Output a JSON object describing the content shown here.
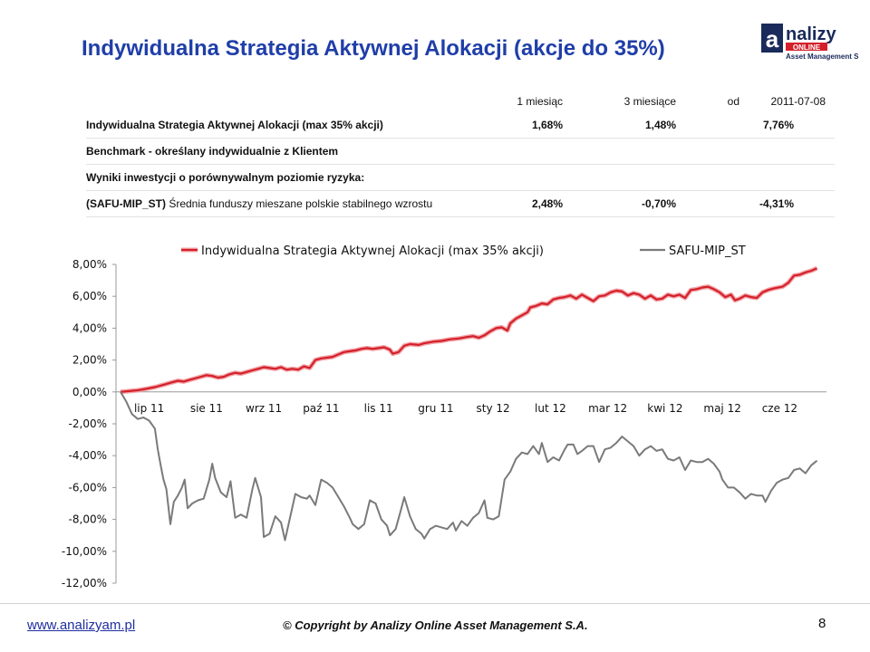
{
  "slide": {
    "title": "Indywidualna Strategia Aktywnej Alokacji (akcje do 35%)",
    "logo_text_top": "nalizy",
    "logo_text_mid": "ONLINE",
    "logo_text_bottom": "Asset Management S.A.",
    "logo_mark": "a",
    "footer_url": "www.analizyam.pl",
    "footer_copyright": "© Copyright by Analizy Online Asset Management S.A.",
    "page_number": "8",
    "colors": {
      "title": "#1f3ea8",
      "series1": "#d4202a",
      "series2": "#7a7a7a",
      "link": "#1f2fa0"
    }
  },
  "table": {
    "headers": {
      "col1": "1 miesiąc",
      "col2": "3 miesiące",
      "col3_prefix": "od",
      "col3_date": "2011-07-08"
    },
    "rows": [
      {
        "label": "Indywidualna Strategia Aktywnej Alokacji (max 35% akcji)",
        "v1": "1,68%",
        "v2": "1,48%",
        "v3": "7,76%"
      },
      {
        "label": "Benchmark - określany indywidualnie z Klientem",
        "v1": "",
        "v2": "",
        "v3": ""
      },
      {
        "label": "Wyniki inwestycji o porównywalnym poziomie ryzyka:",
        "v1": "",
        "v2": "",
        "v3": ""
      },
      {
        "label_bold": "(SAFU-MIP_ST)",
        "label_rest": " Średnia funduszy mieszane polskie stabilnego wzrostu",
        "v1": "2,48%",
        "v2": "-0,70%",
        "v3": "-4,31%"
      }
    ]
  },
  "chart_data": {
    "type": "line",
    "x_tick_labels": [
      "lip 11",
      "sie 11",
      "wrz 11",
      "paź 11",
      "lis 11",
      "gru 11",
      "sty 12",
      "lut 12",
      "mar 12",
      "kwi 12",
      "maj 12",
      "cze 12"
    ],
    "y_tick_labels": [
      "8,00%",
      "6,00%",
      "4,00%",
      "2,00%",
      "0,00%",
      "-2,00%",
      "-4,00%",
      "-6,00%",
      "-8,00%",
      "-10,00%",
      "-12,00%"
    ],
    "ylim": [
      -12,
      8
    ],
    "xlim": [
      0,
      12
    ],
    "grid": false,
    "legend_position": "top",
    "series": [
      {
        "name": "Indywidualna Strategia Aktywnej Alokacji (max 35% akcji)",
        "color": "#d4202a",
        "points": [
          [
            0.0,
            0.0
          ],
          [
            0.15,
            0.05
          ],
          [
            0.3,
            0.1
          ],
          [
            0.45,
            0.2
          ],
          [
            0.6,
            0.3
          ],
          [
            0.75,
            0.45
          ],
          [
            0.9,
            0.6
          ],
          [
            1.0,
            0.7
          ],
          [
            1.1,
            0.65
          ],
          [
            1.2,
            0.75
          ],
          [
            1.35,
            0.9
          ],
          [
            1.5,
            1.05
          ],
          [
            1.6,
            1.0
          ],
          [
            1.7,
            0.9
          ],
          [
            1.8,
            0.95
          ],
          [
            1.9,
            1.1
          ],
          [
            2.0,
            1.2
          ],
          [
            2.1,
            1.15
          ],
          [
            2.2,
            1.25
          ],
          [
            2.3,
            1.35
          ],
          [
            2.4,
            1.45
          ],
          [
            2.5,
            1.55
          ],
          [
            2.6,
            1.5
          ],
          [
            2.7,
            1.45
          ],
          [
            2.8,
            1.55
          ],
          [
            2.9,
            1.4
          ],
          [
            3.0,
            1.45
          ],
          [
            3.1,
            1.4
          ],
          [
            3.2,
            1.6
          ],
          [
            3.3,
            1.5
          ],
          [
            3.4,
            2.0
          ],
          [
            3.5,
            2.1
          ],
          [
            3.6,
            2.15
          ],
          [
            3.7,
            2.2
          ],
          [
            3.8,
            2.35
          ],
          [
            3.9,
            2.5
          ],
          [
            4.0,
            2.55
          ],
          [
            4.1,
            2.6
          ],
          [
            4.2,
            2.7
          ],
          [
            4.3,
            2.75
          ],
          [
            4.4,
            2.7
          ],
          [
            4.5,
            2.75
          ],
          [
            4.6,
            2.8
          ],
          [
            4.7,
            2.65
          ],
          [
            4.75,
            2.4
          ],
          [
            4.85,
            2.5
          ],
          [
            4.95,
            2.9
          ],
          [
            5.05,
            3.0
          ],
          [
            5.2,
            2.95
          ],
          [
            5.3,
            3.05
          ],
          [
            5.45,
            3.15
          ],
          [
            5.6,
            3.2
          ],
          [
            5.75,
            3.3
          ],
          [
            5.9,
            3.35
          ],
          [
            6.05,
            3.45
          ],
          [
            6.15,
            3.5
          ],
          [
            6.25,
            3.4
          ],
          [
            6.35,
            3.55
          ],
          [
            6.45,
            3.8
          ],
          [
            6.55,
            4.0
          ],
          [
            6.65,
            4.05
          ],
          [
            6.75,
            3.85
          ],
          [
            6.8,
            4.3
          ],
          [
            6.9,
            4.6
          ],
          [
            7.0,
            4.8
          ],
          [
            7.1,
            5.0
          ],
          [
            7.15,
            5.3
          ],
          [
            7.25,
            5.4
          ],
          [
            7.35,
            5.55
          ],
          [
            7.45,
            5.5
          ],
          [
            7.55,
            5.8
          ],
          [
            7.65,
            5.9
          ],
          [
            7.75,
            5.95
          ],
          [
            7.85,
            6.05
          ],
          [
            7.95,
            5.85
          ],
          [
            8.05,
            6.1
          ],
          [
            8.15,
            5.9
          ],
          [
            8.25,
            5.7
          ],
          [
            8.35,
            6.0
          ],
          [
            8.45,
            6.05
          ],
          [
            8.55,
            6.25
          ],
          [
            8.65,
            6.35
          ],
          [
            8.75,
            6.3
          ],
          [
            8.85,
            6.05
          ],
          [
            8.95,
            6.2
          ],
          [
            9.05,
            6.1
          ],
          [
            9.15,
            5.85
          ],
          [
            9.25,
            6.05
          ],
          [
            9.35,
            5.8
          ],
          [
            9.45,
            5.85
          ],
          [
            9.55,
            6.1
          ],
          [
            9.65,
            6.0
          ],
          [
            9.75,
            6.1
          ],
          [
            9.85,
            5.9
          ],
          [
            9.95,
            6.4
          ],
          [
            10.05,
            6.45
          ],
          [
            10.15,
            6.55
          ],
          [
            10.25,
            6.6
          ],
          [
            10.35,
            6.45
          ],
          [
            10.45,
            6.25
          ],
          [
            10.55,
            5.95
          ],
          [
            10.65,
            6.1
          ],
          [
            10.72,
            5.75
          ],
          [
            10.8,
            5.85
          ],
          [
            10.9,
            6.05
          ],
          [
            11.0,
            5.95
          ],
          [
            11.1,
            5.9
          ],
          [
            11.2,
            6.25
          ],
          [
            11.3,
            6.4
          ],
          [
            11.4,
            6.5
          ],
          [
            11.55,
            6.6
          ],
          [
            11.65,
            6.85
          ],
          [
            11.75,
            7.3
          ],
          [
            11.85,
            7.35
          ],
          [
            11.95,
            7.5
          ],
          [
            12.05,
            7.6
          ],
          [
            12.15,
            7.76
          ]
        ]
      },
      {
        "name": "SAFU-MIP_ST",
        "color": "#7a7a7a",
        "points": [
          [
            0.0,
            0.0
          ],
          [
            0.1,
            -0.6
          ],
          [
            0.2,
            -1.4
          ],
          [
            0.3,
            -1.7
          ],
          [
            0.4,
            -1.6
          ],
          [
            0.5,
            -1.8
          ],
          [
            0.6,
            -2.3
          ],
          [
            0.65,
            -3.6
          ],
          [
            0.7,
            -4.6
          ],
          [
            0.75,
            -5.5
          ],
          [
            0.8,
            -6.1
          ],
          [
            0.87,
            -8.3
          ],
          [
            0.93,
            -6.9
          ],
          [
            1.0,
            -6.5
          ],
          [
            1.07,
            -6.0
          ],
          [
            1.12,
            -5.5
          ],
          [
            1.17,
            -7.3
          ],
          [
            1.25,
            -7.0
          ],
          [
            1.35,
            -6.8
          ],
          [
            1.45,
            -6.7
          ],
          [
            1.55,
            -5.5
          ],
          [
            1.6,
            -4.5
          ],
          [
            1.65,
            -5.4
          ],
          [
            1.75,
            -6.3
          ],
          [
            1.85,
            -6.6
          ],
          [
            1.92,
            -5.6
          ],
          [
            2.0,
            -7.9
          ],
          [
            2.1,
            -7.7
          ],
          [
            2.2,
            -7.9
          ],
          [
            2.3,
            -6.1
          ],
          [
            2.35,
            -5.4
          ],
          [
            2.45,
            -6.6
          ],
          [
            2.5,
            -9.1
          ],
          [
            2.6,
            -8.9
          ],
          [
            2.7,
            -7.8
          ],
          [
            2.8,
            -8.2
          ],
          [
            2.87,
            -9.3
          ],
          [
            2.95,
            -8.0
          ],
          [
            3.05,
            -6.4
          ],
          [
            3.15,
            -6.6
          ],
          [
            3.25,
            -6.7
          ],
          [
            3.3,
            -6.5
          ],
          [
            3.4,
            -7.1
          ],
          [
            3.5,
            -5.5
          ],
          [
            3.6,
            -5.7
          ],
          [
            3.7,
            -6.0
          ],
          [
            3.8,
            -6.6
          ],
          [
            3.9,
            -7.2
          ],
          [
            4.0,
            -7.9
          ],
          [
            4.05,
            -8.3
          ],
          [
            4.15,
            -8.6
          ],
          [
            4.25,
            -8.3
          ],
          [
            4.35,
            -6.8
          ],
          [
            4.45,
            -7.0
          ],
          [
            4.55,
            -8.0
          ],
          [
            4.65,
            -8.4
          ],
          [
            4.7,
            -9.0
          ],
          [
            4.8,
            -8.6
          ],
          [
            4.9,
            -7.3
          ],
          [
            4.95,
            -6.6
          ],
          [
            5.05,
            -7.8
          ],
          [
            5.15,
            -8.6
          ],
          [
            5.25,
            -8.9
          ],
          [
            5.3,
            -9.2
          ],
          [
            5.4,
            -8.6
          ],
          [
            5.5,
            -8.4
          ],
          [
            5.6,
            -8.5
          ],
          [
            5.7,
            -8.6
          ],
          [
            5.8,
            -8.2
          ],
          [
            5.85,
            -8.7
          ],
          [
            5.95,
            -8.1
          ],
          [
            6.05,
            -8.4
          ],
          [
            6.15,
            -7.9
          ],
          [
            6.25,
            -7.6
          ],
          [
            6.35,
            -6.8
          ],
          [
            6.4,
            -7.9
          ],
          [
            6.5,
            -8.0
          ],
          [
            6.6,
            -7.8
          ],
          [
            6.7,
            -5.5
          ],
          [
            6.8,
            -5.0
          ],
          [
            6.9,
            -4.2
          ],
          [
            7.0,
            -3.8
          ],
          [
            7.1,
            -3.9
          ],
          [
            7.2,
            -3.4
          ],
          [
            7.3,
            -3.9
          ],
          [
            7.35,
            -3.2
          ],
          [
            7.45,
            -4.4
          ],
          [
            7.55,
            -4.1
          ],
          [
            7.65,
            -4.3
          ],
          [
            7.75,
            -3.6
          ],
          [
            7.8,
            -3.3
          ],
          [
            7.9,
            -3.3
          ],
          [
            7.97,
            -3.9
          ],
          [
            8.05,
            -3.7
          ],
          [
            8.15,
            -3.4
          ],
          [
            8.25,
            -3.4
          ],
          [
            8.35,
            -4.4
          ],
          [
            8.45,
            -3.6
          ],
          [
            8.55,
            -3.5
          ],
          [
            8.65,
            -3.2
          ],
          [
            8.75,
            -2.8
          ],
          [
            8.85,
            -3.1
          ],
          [
            8.95,
            -3.4
          ],
          [
            9.05,
            -4.0
          ],
          [
            9.15,
            -3.6
          ],
          [
            9.25,
            -3.4
          ],
          [
            9.35,
            -3.7
          ],
          [
            9.45,
            -3.6
          ],
          [
            9.55,
            -4.2
          ],
          [
            9.65,
            -4.3
          ],
          [
            9.75,
            -4.1
          ],
          [
            9.85,
            -4.9
          ],
          [
            9.95,
            -4.3
          ],
          [
            10.05,
            -4.4
          ],
          [
            10.15,
            -4.4
          ],
          [
            10.25,
            -4.2
          ],
          [
            10.35,
            -4.5
          ],
          [
            10.45,
            -5.0
          ],
          [
            10.5,
            -5.5
          ],
          [
            10.6,
            -6.0
          ],
          [
            10.7,
            -6.0
          ],
          [
            10.8,
            -6.3
          ],
          [
            10.9,
            -6.7
          ],
          [
            11.0,
            -6.4
          ],
          [
            11.1,
            -6.5
          ],
          [
            11.2,
            -6.5
          ],
          [
            11.25,
            -6.9
          ],
          [
            11.35,
            -6.2
          ],
          [
            11.45,
            -5.7
          ],
          [
            11.55,
            -5.5
          ],
          [
            11.65,
            -5.4
          ],
          [
            11.75,
            -4.9
          ],
          [
            11.85,
            -4.8
          ],
          [
            11.95,
            -5.1
          ],
          [
            12.05,
            -4.6
          ],
          [
            12.15,
            -4.31
          ]
        ]
      }
    ]
  }
}
